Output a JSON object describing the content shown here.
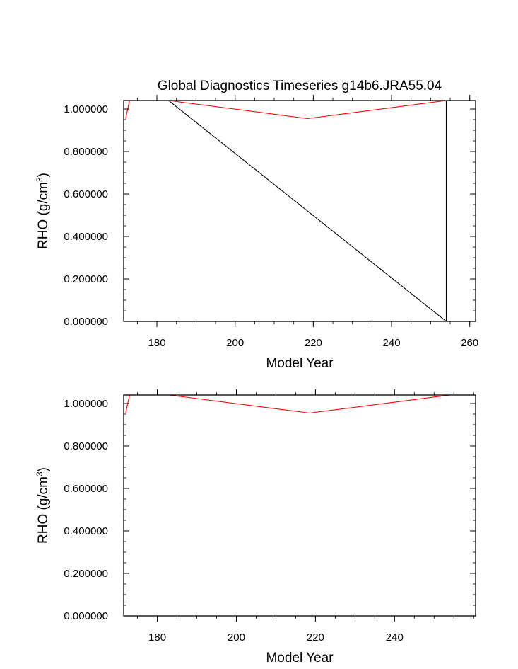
{
  "title": "Global Diagnostics Timeseries g14b6.JRA55.04",
  "colors": {
    "red_series": "#ff0000",
    "black_series": "#000000",
    "frame": "#000000"
  },
  "chart_data": [
    {
      "type": "line",
      "title": "Global Diagnostics Timeseries g14b6.JRA55.04",
      "xlabel": "Model Year",
      "ylabel_main": "RHO (g/cm",
      "ylabel_sup": "3",
      "ylabel_close": ")",
      "xlim": [
        171.5,
        261.5
      ],
      "ylim": [
        0.0,
        1.04
      ],
      "x_ticks": [
        180,
        200,
        220,
        240,
        260
      ],
      "x_tick_labels": [
        "180",
        "200",
        "220",
        "240",
        "260"
      ],
      "y_ticks": [
        0.0,
        0.2,
        0.4,
        0.6,
        0.8,
        1.0
      ],
      "y_tick_labels": [
        "0.000000",
        "0.200000",
        "0.400000",
        "0.600000",
        "0.800000",
        "1.000000"
      ],
      "grid": false,
      "series": [
        {
          "color": "#ff0000",
          "x": [
            172,
            173,
            183,
            218.5,
            254,
            261.5
          ],
          "y": [
            0.955,
            1.04,
            1.04,
            0.955,
            1.04,
            1.04
          ]
        },
        {
          "color": "#000000",
          "x": [
            173,
            183,
            254,
            254,
            254
          ],
          "y": [
            1.04,
            1.04,
            0.0,
            0.83,
            1.04
          ]
        }
      ]
    },
    {
      "type": "line",
      "title": "",
      "xlabel": "Model Year",
      "ylabel_main": "RHO (g/cm",
      "ylabel_sup": "3",
      "ylabel_close": ")",
      "xlim": [
        171.5,
        260.5
      ],
      "ylim": [
        0.0,
        1.04
      ],
      "x_ticks": [
        180,
        200,
        220,
        240
      ],
      "x_tick_labels": [
        "180",
        "200",
        "220",
        "240"
      ],
      "y_ticks": [
        0.0,
        0.2,
        0.4,
        0.6,
        0.8,
        1.0
      ],
      "y_tick_labels": [
        "0.000000",
        "0.200000",
        "0.400000",
        "0.600000",
        "0.800000",
        "1.000000"
      ],
      "grid": false,
      "series": [
        {
          "color": "#ff0000",
          "x": [
            172,
            173,
            183,
            218.5,
            254,
            260.5
          ],
          "y": [
            0.955,
            1.04,
            1.04,
            0.955,
            1.04,
            1.04
          ]
        }
      ]
    }
  ]
}
